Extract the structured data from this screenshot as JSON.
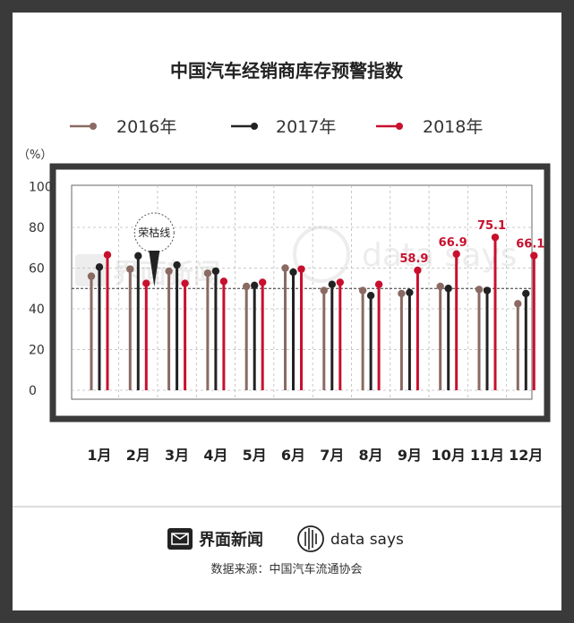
{
  "brand": {
    "logo1_text": "界面新闻",
    "logo2_text": "data says",
    "source": "数据来源：中国汽车流通协会"
  },
  "watermark": {
    "text1": "界面新闻",
    "text2": "data says"
  },
  "colors": {
    "s2016": "#8a6a62",
    "s2017": "#222222",
    "s2018": "#c8102e",
    "frame": "#3a3a3a"
  },
  "chart_data": {
    "type": "lollipop",
    "title": "中国汽车经销商库存预警指数",
    "ylabel": "（%）",
    "categories": [
      "1月",
      "2月",
      "3月",
      "4月",
      "5月",
      "6月",
      "7月",
      "8月",
      "9月",
      "10月",
      "11月",
      "12月"
    ],
    "ylim": [
      0,
      105
    ],
    "yticks": [
      "0",
      "20",
      "40",
      "60",
      "80",
      "100"
    ],
    "reference_line": 50,
    "series": [
      {
        "name": "2016年",
        "values": [
          56,
          59.5,
          58.5,
          57.5,
          51,
          60,
          49,
          49,
          47.5,
          51,
          49.5,
          42.5
        ]
      },
      {
        "name": "2017年",
        "values": [
          60.5,
          66,
          61.5,
          58.5,
          51.5,
          58,
          52,
          46.5,
          48,
          50,
          49,
          47.5
        ]
      },
      {
        "name": "2018年",
        "values": [
          66.5,
          52.5,
          52.5,
          53.5,
          53,
          59.5,
          53,
          52,
          58.9,
          66.9,
          75.1,
          66.1
        ]
      }
    ],
    "data_labels": [
      {
        "series": 2,
        "index": 8,
        "text": "58.9"
      },
      {
        "series": 2,
        "index": 9,
        "text": "66.9"
      },
      {
        "series": 2,
        "index": 10,
        "text": "75.1"
      },
      {
        "series": 2,
        "index": 11,
        "text": "66.1"
      }
    ],
    "annotation": {
      "text": "荣枯线",
      "index": 1
    }
  }
}
